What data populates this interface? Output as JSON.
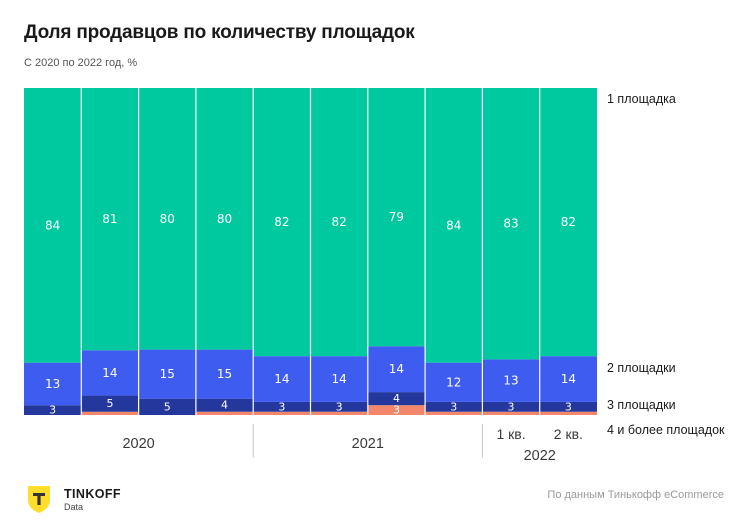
{
  "header": {
    "title": "Доля продавцов по количеству площадок",
    "subtitle": "С 2020 по 2022 год, %"
  },
  "footer": {
    "brand_name": "TINKOFF",
    "brand_sub": "Data",
    "source": "По данным Тинькофф eCommerce"
  },
  "chart_data": {
    "type": "bar",
    "stacked": true,
    "orientation": "vertical",
    "normalized": "percent",
    "categories": [
      "",
      "",
      "",
      "",
      "",
      "",
      "",
      "",
      "1 кв.",
      "2 кв."
    ],
    "groups": [
      {
        "label": "2020",
        "start": 0,
        "end": 3
      },
      {
        "label": "2021",
        "start": 4,
        "end": 7
      },
      {
        "label": "2022",
        "start": 8,
        "end": 9
      }
    ],
    "series": [
      {
        "name": "4 и более площадок",
        "color": "#f2876b",
        "values": [
          0,
          1,
          0,
          1,
          1,
          1,
          3,
          1,
          1,
          1
        ],
        "labels": [
          "",
          "",
          "",
          "",
          "",
          "",
          "3",
          "",
          "",
          ""
        ]
      },
      {
        "name": "3 площадки",
        "color": "#24379c",
        "values": [
          3,
          5,
          5,
          4,
          3,
          3,
          4,
          3,
          3,
          3
        ],
        "labels": [
          "3",
          "5",
          "5",
          "4",
          "3",
          "3",
          "4",
          "3",
          "3",
          "3"
        ]
      },
      {
        "name": "2 площадки",
        "color": "#3f5cf0",
        "values": [
          13,
          14,
          15,
          15,
          14,
          14,
          14,
          12,
          13,
          14
        ],
        "labels": [
          "13",
          "14",
          "15",
          "15",
          "14",
          "14",
          "14",
          "12",
          "13",
          "14"
        ]
      },
      {
        "name": "1 площадка",
        "color": "#00c9a0",
        "values": [
          84,
          81,
          80,
          80,
          82,
          82,
          79,
          84,
          83,
          82
        ],
        "labels": [
          "84",
          "81",
          "80",
          "80",
          "82",
          "82",
          "79",
          "84",
          "83",
          "82"
        ]
      }
    ],
    "ylim": [
      0,
      100
    ],
    "legend_position": "right",
    "grid": false
  }
}
